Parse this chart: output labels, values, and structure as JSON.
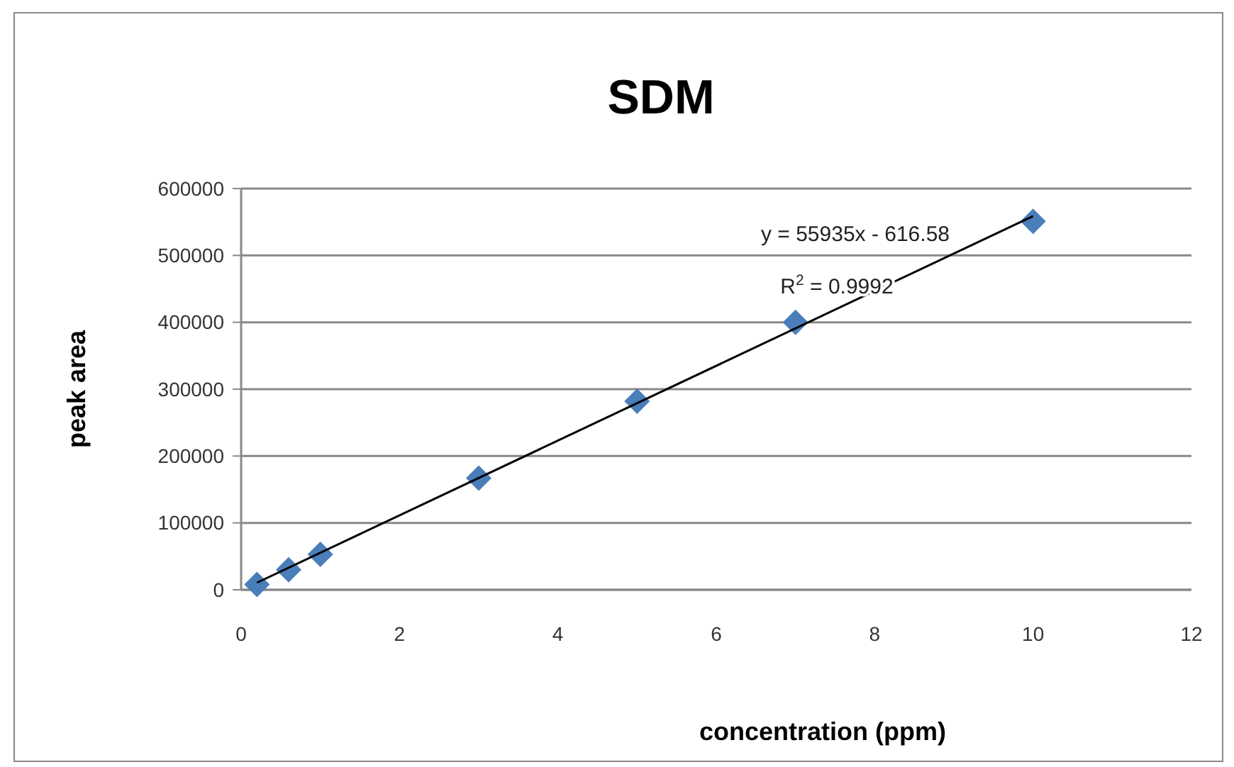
{
  "chart_data": {
    "type": "scatter",
    "title": "SDM",
    "xlabel": "concentration (ppm)",
    "ylabel": "peak area",
    "xlim": [
      0,
      12
    ],
    "xticks": [
      0,
      2,
      4,
      6,
      8,
      10,
      12
    ],
    "ylim": [
      0,
      600000
    ],
    "yticks": [
      0,
      100000,
      200000,
      300000,
      400000,
      500000,
      600000
    ],
    "grid": "y",
    "series": [
      {
        "color": "#4a7ebb",
        "marker": "diamond",
        "x": [
          0.2,
          0.6,
          1,
          3,
          5,
          7,
          10
        ],
        "values": [
          8000,
          30000,
          53000,
          167000,
          282000,
          400000,
          551000
        ]
      },
      {
        "type": "line",
        "color": "#000000",
        "line_style": "solid",
        "x": [
          0.2,
          10
        ],
        "values": [
          10600,
          558700
        ]
      }
    ],
    "annotations": [
      "y = 55935x - 616.58",
      "R$^{2}$ = 0.9992"
    ]
  }
}
